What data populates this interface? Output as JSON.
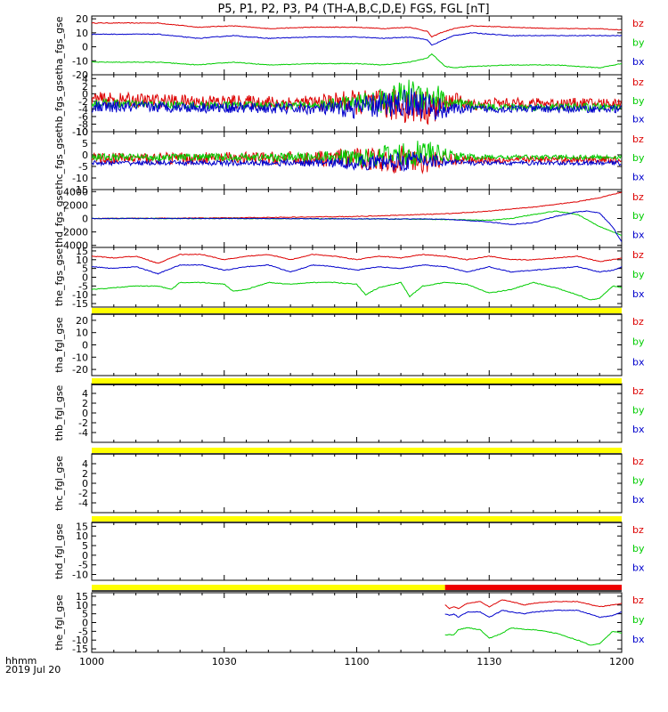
{
  "chart_data": {
    "type": "line",
    "title": "P5, P1, P2, P3, P4 (TH-A,B,C,D,E) FGS, FGL [nT]",
    "time_label": "hhmm",
    "date_label": "2019 Jul 20",
    "x_ticks": [
      "1000",
      "1030",
      "1100",
      "1130",
      "1200"
    ],
    "x_range_minutes": [
      0,
      120
    ],
    "colors": {
      "bz": "#dd0000",
      "by": "#00cc00",
      "bx": "#0000cc",
      "flag": "#ffff00",
      "flag_red": "#ee0000",
      "black": "#000000"
    },
    "panels": [
      {
        "ylabel": "tha_fgs_gse",
        "ylim": [
          -20,
          22
        ],
        "yticks": [
          -20,
          -10,
          0,
          10,
          20
        ],
        "legend": [
          "bz",
          "by",
          "bx"
        ],
        "kind": "smooth",
        "series": [
          {
            "name": "bz",
            "x": [
              0,
              15,
              24,
              32,
              40,
              50,
              60,
              66,
              72,
              76,
              77,
              79,
              82,
              86,
              95,
              105,
              115,
              120
            ],
            "y": [
              17,
              17,
              14,
              15,
              13,
              14,
              14,
              13,
              14,
              11,
              7,
              10,
              13,
              15,
              14,
              13,
              13,
              12
            ]
          },
          {
            "name": "by",
            "x": [
              0,
              15,
              24,
              32,
              40,
              50,
              60,
              66,
              72,
              76,
              77,
              78,
              80,
              82,
              86,
              95,
              105,
              115,
              120
            ],
            "y": [
              -11,
              -11,
              -13,
              -11,
              -13,
              -12,
              -12,
              -13,
              -11,
              -8,
              -5,
              -8,
              -14,
              -15,
              -14,
              -13,
              -13,
              -15,
              -12
            ]
          },
          {
            "name": "bx",
            "x": [
              0,
              15,
              24,
              32,
              40,
              50,
              60,
              66,
              72,
              76,
              77,
              79,
              82,
              86,
              95,
              105,
              115,
              120
            ],
            "y": [
              9,
              9,
              6,
              8,
              6,
              7,
              7,
              6,
              7,
              5,
              1,
              4,
              8,
              10,
              8,
              8,
              8,
              8
            ]
          }
        ]
      },
      {
        "ylabel": "thb_fgs_gse",
        "ylim": [
          -10,
          5
        ],
        "yticks": [
          -10,
          -8,
          -6,
          -4,
          -2,
          0,
          2,
          4
        ],
        "kind": "noisy",
        "legend": [
          "bz",
          "by",
          "bx"
        ],
        "series": [
          {
            "name": "bz",
            "x": [
              0,
              20,
              50,
              58,
              66,
              72,
              78,
              82,
              86,
              90,
              100,
              120
            ],
            "y": [
              -1.5,
              -2,
              -2.5,
              -2,
              -3,
              -3,
              -4,
              -1.5,
              -3,
              -2.5,
              -2.5,
              -2.5
            ],
            "amp": [
              2,
              1.8,
              2,
              3,
              4,
              5,
              4,
              2,
              1.5,
              1.4,
              1.4,
              1.4
            ]
          },
          {
            "name": "by",
            "x": [
              0,
              20,
              50,
              58,
              66,
              72,
              78,
              82,
              86,
              90,
              100,
              120
            ],
            "y": [
              -2.5,
              -3,
              -3,
              -2.5,
              -2,
              0,
              -1,
              -3,
              -3,
              -3.5,
              -3.5,
              -3.5
            ],
            "amp": [
              1.2,
              1,
              1,
              2,
              3.5,
              4,
              4,
              2,
              1.2,
              1,
              1,
              1
            ]
          },
          {
            "name": "bx",
            "x": [
              0,
              20,
              50,
              58,
              66,
              72,
              78,
              82,
              86,
              90,
              100,
              120
            ],
            "y": [
              -3.5,
              -3.5,
              -4,
              -4,
              -3,
              -2,
              -4,
              -4,
              -4,
              -4,
              -4,
              -4
            ],
            "amp": [
              1.5,
              1.4,
              1.4,
              2.5,
              3.5,
              4,
              3.5,
              1.5,
              1,
              1,
              1,
              1
            ]
          }
        ]
      },
      {
        "ylabel": "thc_fgs_gse",
        "ylim": [
          -15,
          10
        ],
        "yticks": [
          -15,
          -10,
          -5,
          0,
          5,
          10
        ],
        "kind": "noisy",
        "legend": [
          "bz",
          "by",
          "bx"
        ],
        "series": [
          {
            "name": "bz",
            "x": [
              0,
              20,
              50,
              60,
              70,
              75,
              80,
              85,
              90,
              120
            ],
            "y": [
              -1.5,
              -1.5,
              -1.5,
              -1.5,
              -2,
              -2,
              -2,
              -2,
              -2,
              -2
            ],
            "amp": [
              2.5,
              2.5,
              3,
              4.5,
              6,
              6,
              3,
              2,
              1.5,
              1.5
            ]
          },
          {
            "name": "by",
            "x": [
              0,
              20,
              50,
              60,
              70,
              75,
              80,
              85,
              90,
              120
            ],
            "y": [
              -1,
              -1,
              -1,
              -1,
              0,
              1,
              0,
              -1,
              -1,
              -1
            ],
            "amp": [
              1.5,
              1.5,
              2,
              4,
              5,
              6,
              3,
              1.5,
              1,
              1
            ]
          },
          {
            "name": "bx",
            "x": [
              0,
              20,
              50,
              60,
              70,
              75,
              80,
              85,
              90,
              120
            ],
            "y": [
              -3.5,
              -3.5,
              -3.5,
              -3.5,
              -3,
              -2,
              -3,
              -3.5,
              -3.5,
              -3.5
            ],
            "amp": [
              1,
              1,
              1.5,
              3,
              4,
              4,
              2,
              1,
              1,
              1
            ]
          }
        ]
      },
      {
        "ylabel": "thd_fgs_gse",
        "ylim": [
          -4300,
          4300
        ],
        "yticks": [
          -4000,
          -2000,
          0,
          2000,
          4000
        ],
        "kind": "smooth",
        "legend": [
          "bz",
          "by",
          "bx"
        ],
        "series": [
          {
            "name": "bz",
            "x": [
              0,
              30,
              60,
              80,
              90,
              100,
              110,
              115,
              120
            ],
            "y": [
              0,
              80,
              300,
              700,
              1100,
              1700,
              2500,
              3100,
              3900
            ]
          },
          {
            "name": "by",
            "x": [
              0,
              30,
              60,
              80,
              90,
              95,
              100,
              105,
              110,
              115,
              120
            ],
            "y": [
              0,
              0,
              -50,
              -150,
              -250,
              0,
              600,
              1100,
              600,
              -1200,
              -2500
            ]
          },
          {
            "name": "bx",
            "x": [
              0,
              30,
              60,
              80,
              90,
              95,
              100,
              105,
              110,
              112,
              115,
              118,
              120
            ],
            "y": [
              0,
              0,
              -50,
              -100,
              -500,
              -900,
              -600,
              300,
              1000,
              1100,
              800,
              -1300,
              -3500
            ]
          }
        ]
      },
      {
        "ylabel": "the_fgs_gse",
        "ylim": [
          -17,
          17
        ],
        "yticks": [
          -15,
          -10,
          -5,
          0,
          5,
          10,
          15
        ],
        "kind": "smooth",
        "legend": [
          "bz",
          "by",
          "bx"
        ],
        "series": [
          {
            "name": "bz",
            "x": [
              0,
              5,
              10,
              15,
              20,
              25,
              30,
              35,
              40,
              45,
              50,
              55,
              60,
              65,
              70,
              75,
              80,
              85,
              90,
              95,
              100,
              105,
              110,
              115,
              118,
              120
            ],
            "y": [
              12,
              11,
              12,
              8,
              13,
              13,
              10,
              12,
              13,
              10,
              13,
              12,
              10,
              12,
              11,
              13,
              12,
              10,
              12,
              10,
              10,
              11,
              12,
              9,
              10,
              11
            ]
          },
          {
            "name": "by",
            "x": [
              0,
              5,
              10,
              15,
              18,
              20,
              25,
              30,
              32,
              35,
              40,
              45,
              50,
              55,
              60,
              62,
              65,
              70,
              72,
              75,
              80,
              85,
              90,
              95,
              100,
              105,
              110,
              113,
              115,
              118,
              120
            ],
            "y": [
              -7,
              -6,
              -5,
              -5,
              -7,
              -3,
              -3,
              -4,
              -8,
              -7,
              -3,
              -4,
              -3,
              -3,
              -4,
              -10,
              -6,
              -3,
              -11,
              -5,
              -3,
              -4,
              -9,
              -7,
              -3,
              -6,
              -10,
              -13,
              -12,
              -5,
              -6
            ]
          },
          {
            "name": "bx",
            "x": [
              0,
              5,
              10,
              15,
              20,
              25,
              30,
              35,
              40,
              45,
              50,
              55,
              60,
              65,
              70,
              75,
              80,
              85,
              90,
              95,
              100,
              105,
              110,
              115,
              118,
              120
            ],
            "y": [
              6,
              5,
              6,
              2,
              7,
              7,
              4,
              6,
              7,
              3,
              7,
              6,
              4,
              6,
              5,
              7,
              6,
              3,
              6,
              3,
              4,
              5,
              6,
              3,
              4,
              6
            ]
          }
        ]
      },
      {
        "ylabel": "tha_fgl_gse",
        "ylim": [
          -25,
          25
        ],
        "yticks": [
          -20,
          -10,
          0,
          10,
          20
        ],
        "legend": [
          "bz",
          "by",
          "bx"
        ],
        "kind": "smooth",
        "series": []
      },
      {
        "ylabel": "thb_fgl_gse",
        "ylim": [
          -6,
          6
        ],
        "yticks": [
          -4,
          -2,
          0,
          2,
          4
        ],
        "legend": [
          "bz",
          "by",
          "bx"
        ],
        "kind": "smooth",
        "series": []
      },
      {
        "ylabel": "thc_fgl_gse",
        "ylim": [
          -6,
          6
        ],
        "yticks": [
          -4,
          -2,
          0,
          2,
          4
        ],
        "legend": [
          "bz",
          "by",
          "bx"
        ],
        "kind": "smooth",
        "series": []
      },
      {
        "ylabel": "thd_fgl_gse",
        "ylim": [
          -13,
          17
        ],
        "yticks": [
          -10,
          -5,
          0,
          5,
          10,
          15
        ],
        "legend": [
          "bz",
          "by",
          "bx"
        ],
        "kind": "smooth",
        "series": []
      },
      {
        "ylabel": "the_fgl_gse",
        "ylim": [
          -17,
          17
        ],
        "yticks": [
          -15,
          -10,
          -5,
          0,
          5,
          10,
          15
        ],
        "kind": "smooth",
        "legend": [
          "bz",
          "by",
          "bx"
        ],
        "series": [
          {
            "name": "bz",
            "x": [
              80,
              81,
              82,
              83,
              85,
              88,
              90,
              93,
              95,
              98,
              100,
              105,
              110,
              115,
              118,
              120
            ],
            "y": [
              10,
              8,
              9,
              8,
              11,
              12,
              9,
              13,
              12,
              10,
              11,
              12,
              12,
              9,
              10,
              11
            ]
          },
          {
            "name": "by",
            "x": [
              80,
              82,
              83,
              85,
              88,
              90,
              93,
              95,
              98,
              100,
              105,
              110,
              113,
              115,
              118,
              120
            ],
            "y": [
              -7,
              -7,
              -4,
              -3,
              -4,
              -9,
              -6,
              -3,
              -4,
              -4,
              -6,
              -10,
              -13,
              -12,
              -5,
              -6
            ]
          },
          {
            "name": "bx",
            "x": [
              80,
              81,
              82,
              83,
              85,
              88,
              90,
              93,
              95,
              98,
              100,
              105,
              110,
              115,
              118,
              120
            ],
            "y": [
              5,
              4,
              5,
              3,
              6,
              6,
              3,
              7,
              6,
              5,
              6,
              7,
              7,
              3,
              4,
              6
            ]
          }
        ]
      }
    ],
    "flag_bars": [
      {
        "after_panel": 5,
        "segments": [
          {
            "from": 0,
            "to": 120,
            "color": "flag"
          }
        ]
      },
      {
        "after_panel": 6,
        "segments": [
          {
            "from": 0,
            "to": 120,
            "color": "flag"
          }
        ]
      },
      {
        "after_panel": 7,
        "segments": [
          {
            "from": 0,
            "to": 120,
            "color": "flag"
          }
        ]
      },
      {
        "after_panel": 8,
        "segments": [
          {
            "from": 0,
            "to": 120,
            "color": "flag"
          }
        ]
      },
      {
        "after_panel": 9,
        "segments": [
          {
            "from": 0,
            "to": 80,
            "color": "flag"
          },
          {
            "from": 80,
            "to": 120,
            "color": "flag_red"
          }
        ]
      }
    ]
  }
}
